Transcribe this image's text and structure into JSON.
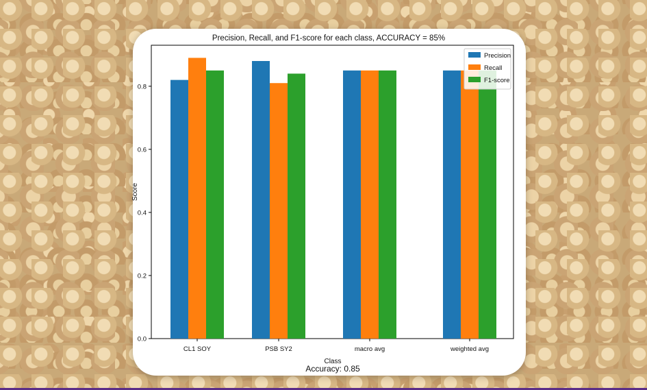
{
  "chart_data": {
    "type": "bar",
    "title": "Precision, Recall, and F1-score for each class, ACCURACY = 85%",
    "xlabel": "Class",
    "ylabel": "Score",
    "categories": [
      "CL1 SOY",
      "PSB SY2",
      "macro avg",
      "weighted avg"
    ],
    "series": [
      {
        "name": "Precision",
        "values": [
          0.82,
          0.88,
          0.85,
          0.85
        ]
      },
      {
        "name": "Recall",
        "values": [
          0.89,
          0.81,
          0.85,
          0.85
        ]
      },
      {
        "name": "F1-score",
        "values": [
          0.85,
          0.84,
          0.85,
          0.85
        ]
      }
    ],
    "ylim": [
      0,
      0.93
    ],
    "yticks": [
      "0.0",
      "0.2",
      "0.4",
      "0.6",
      "0.8"
    ],
    "legend": "top-right",
    "grid": false,
    "footer": "Accuracy: 0.85",
    "colors": {
      "Precision": "#1f77b4",
      "Recall": "#ff7f0e",
      "F1-score": "#2ca02c"
    }
  }
}
